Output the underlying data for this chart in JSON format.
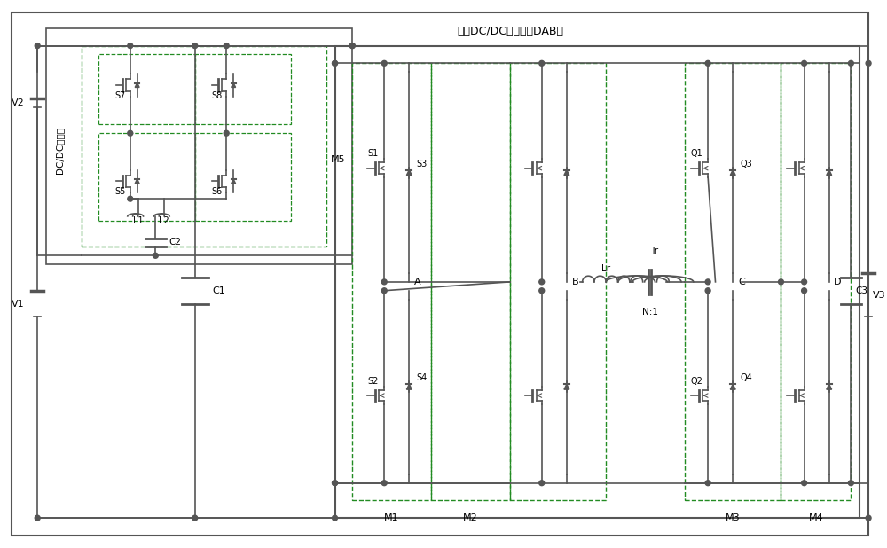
{
  "bg_color": "#ffffff",
  "line_color": "#555555",
  "dashed_box_color": "#228B22",
  "solid_box_color": "#555555",
  "fig_width": 10.0,
  "fig_height": 6.18,
  "title": "",
  "labels": {
    "V1": "V1",
    "V2": "V2",
    "V3": "V3",
    "C1": "C1",
    "C2": "C2",
    "C3": "C3",
    "S1": "S1",
    "S2": "S2",
    "S3": "S3",
    "S4": "S4",
    "S5": "S5",
    "S6": "S6",
    "S7": "S7",
    "S8": "S8",
    "Q1": "Q1",
    "Q2": "Q2",
    "Q3": "Q3",
    "Q4": "Q4",
    "L1": "L1",
    "L2": "L2",
    "Lr": "Lr",
    "Tr": "Tr",
    "A": "A",
    "B": "B",
    "C": "C",
    "D": "D",
    "M1": "M1",
    "M2": "M2",
    "M3": "M3",
    "M4": "M4",
    "M5": "M5",
    "N1": "N:1",
    "DAB_label": "隔离DC/DC变换器（DAB）",
    "DCDC_label": "DC/DC变换器"
  }
}
